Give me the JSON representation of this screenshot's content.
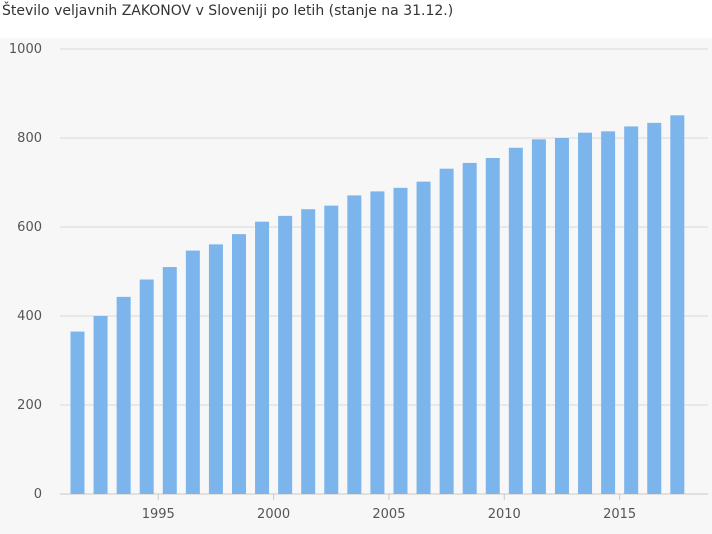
{
  "chart_data": {
    "type": "bar",
    "title": "Število veljavnih ZAKONOV v Sloveniji po letih (stanje na 31.12.)",
    "xlabel": "",
    "ylabel": "",
    "categories": [
      1991,
      1992,
      1993,
      1994,
      1995,
      1996,
      1997,
      1998,
      1999,
      2000,
      2001,
      2002,
      2003,
      2004,
      2005,
      2006,
      2007,
      2008,
      2009,
      2010,
      2011,
      2012,
      2013,
      2014,
      2015,
      2016,
      2017
    ],
    "values": [
      365,
      400,
      443,
      482,
      510,
      547,
      561,
      584,
      612,
      625,
      640,
      648,
      671,
      680,
      688,
      702,
      731,
      744,
      755,
      778,
      797,
      800,
      812,
      815,
      826,
      834,
      851
    ],
    "ylim": [
      0,
      1000
    ],
    "yticks": [
      0,
      200,
      400,
      600,
      800,
      1000
    ],
    "xticks": [
      1995,
      2000,
      2005,
      2010,
      2015
    ],
    "grid": true,
    "colors": {
      "bar": "#7cb5ec",
      "grid": "#d8d8d8",
      "background": "#f7f7f7"
    }
  }
}
